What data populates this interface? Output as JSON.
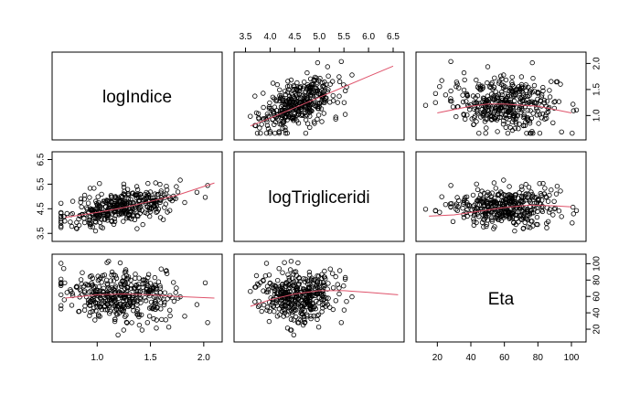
{
  "chart_data": {
    "type": "scatter",
    "variables": [
      "logIndice",
      "logTrigliceridi",
      "Eta"
    ],
    "ranges": {
      "logIndice": [
        0.62,
        2.13
      ],
      "logTrigliceridi": [
        3.36,
        6.63
      ],
      "Eta": [
        10,
        106
      ]
    },
    "ticks": {
      "logIndice": {
        "values": [
          1.0,
          1.5,
          2.0
        ],
        "labels": [
          "1.0",
          "1.5",
          "2.0"
        ],
        "axis_side": "bottom"
      },
      "logIndice_right": {
        "values": [
          1.0,
          1.5,
          2.0
        ],
        "labels": [
          "1.0",
          "1.5",
          "2.0"
        ],
        "axis_side": "right"
      },
      "logTrigliceridi_top": {
        "values": [
          3.5,
          4.0,
          4.5,
          5.0,
          5.5,
          6.0,
          6.5
        ],
        "labels": [
          "3.5",
          "4.0",
          "4.5",
          "5.0",
          "5.5",
          "6.0",
          "6.5"
        ],
        "axis_side": "top"
      },
      "logTrigliceridi_left": {
        "values": [
          3.5,
          4.5,
          5.5,
          6.5
        ],
        "labels": [
          "3.5",
          "4.5",
          "5.5",
          "6.5"
        ],
        "axis_side": "left"
      },
      "Eta_bottom": {
        "values": [
          20,
          40,
          60,
          80,
          100
        ],
        "labels": [
          "20",
          "40",
          "60",
          "80",
          "100"
        ],
        "axis_side": "bottom"
      },
      "Eta_right": {
        "values": [
          20,
          40,
          60,
          80,
          100
        ],
        "labels": [
          "20",
          "40",
          "60",
          "80",
          "100"
        ],
        "axis_side": "right"
      }
    },
    "smoother_color": "#df536b",
    "point_color": "#000000",
    "n_points": 400,
    "approx_marginals": {
      "logIndice": {
        "mean": 1.25,
        "sd": 0.26
      },
      "logTrigliceridi": {
        "mean": 4.6,
        "sd": 0.42
      },
      "Eta": {
        "mean": 61,
        "sd": 16
      }
    },
    "approx_correlations": {
      "logIndice__logTrigliceridi": 0.55,
      "logIndice__Eta": 0.0,
      "logTrigliceridi__Eta": 0.15
    },
    "smoothers": {
      "logIndice_vs_logTrigliceridi": {
        "x": [
          3.6,
          4.0,
          4.5,
          5.0,
          5.5,
          6.0,
          6.5
        ],
        "y": [
          0.8,
          0.95,
          1.15,
          1.35,
          1.55,
          1.75,
          1.95
        ]
      },
      "logIndice_vs_Eta": {
        "x": [
          20,
          40,
          50,
          60,
          70,
          80,
          100
        ],
        "y": [
          1.05,
          1.18,
          1.22,
          1.22,
          1.2,
          1.18,
          1.05
        ]
      },
      "logTrigliceridi_vs_logIndice": {
        "x": [
          0.7,
          1.0,
          1.25,
          1.5,
          1.75,
          2.1
        ],
        "y": [
          4.15,
          4.35,
          4.55,
          4.8,
          5.05,
          5.55
        ]
      },
      "logTrigliceridi_vs_Eta": {
        "x": [
          15,
          30,
          45,
          60,
          75,
          90,
          100
        ],
        "y": [
          4.2,
          4.25,
          4.4,
          4.55,
          4.65,
          4.62,
          4.58
        ]
      },
      "Eta_vs_logIndice": {
        "x": [
          0.7,
          1.0,
          1.25,
          1.5,
          1.75,
          2.1
        ],
        "y": [
          58,
          62,
          63,
          62,
          60,
          58
        ]
      },
      "Eta_vs_logTrigliceridi": {
        "x": [
          3.6,
          4.0,
          4.5,
          5.0,
          5.5,
          6.0,
          6.6
        ],
        "y": [
          48,
          56,
          63,
          67,
          67,
          65,
          62
        ]
      }
    }
  }
}
